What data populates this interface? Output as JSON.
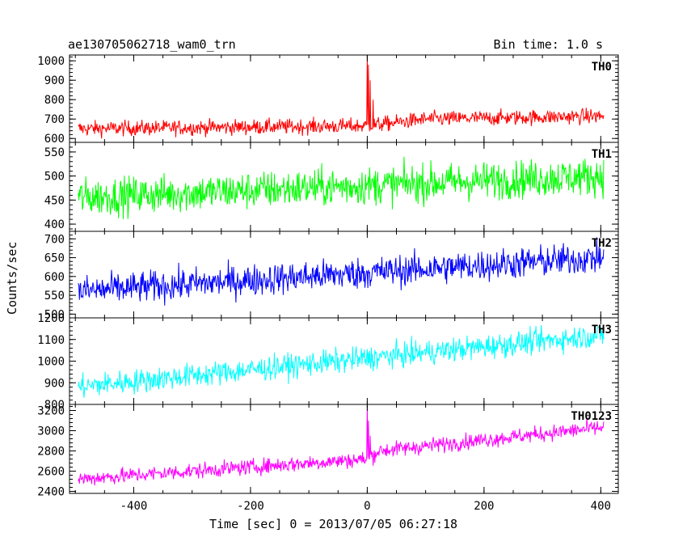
{
  "header": {
    "title": "ae130705062718_wam0_trn",
    "bin_time": "Bin time: 1.0 s"
  },
  "chart_data": {
    "type": "line",
    "xlabel": "Time [sec] 0 = 2013/07/05 06:27:18",
    "ylabel": "Counts/sec",
    "xlim": [
      -510,
      430
    ],
    "xticks": [
      -400,
      -200,
      0,
      200,
      400
    ],
    "panels": [
      {
        "name": "TH0",
        "color": "#ff0000",
        "ylim": [
          580,
          1030
        ],
        "yticks": [
          600,
          700,
          800,
          900,
          1000
        ],
        "trend": [
          {
            "x": -500,
            "y": 650
          },
          {
            "x": 0,
            "y": 665
          },
          {
            "x": 100,
            "y": 700
          },
          {
            "x": 400,
            "y": 715
          }
        ],
        "noise": 28,
        "spikes": [
          {
            "x": 0,
            "y": 1020
          },
          {
            "x": 2,
            "y": 980
          },
          {
            "x": 5,
            "y": 900
          },
          {
            "x": 10,
            "y": 800
          }
        ]
      },
      {
        "name": "TH1",
        "color": "#00ff00",
        "ylim": [
          385,
          570
        ],
        "yticks": [
          400,
          450,
          500,
          550
        ],
        "trend": [
          {
            "x": -500,
            "y": 455
          },
          {
            "x": 400,
            "y": 500
          }
        ],
        "noise": 28,
        "spikes": []
      },
      {
        "name": "TH2",
        "color": "#0000ff",
        "ylim": [
          490,
          720
        ],
        "yticks": [
          500,
          550,
          600,
          650,
          700
        ],
        "trend": [
          {
            "x": -500,
            "y": 560
          },
          {
            "x": 400,
            "y": 650
          }
        ],
        "noise": 30,
        "spikes": []
      },
      {
        "name": "TH3",
        "color": "#00ffff",
        "ylim": [
          800,
          1200
        ],
        "yticks": [
          800,
          900,
          1000,
          1100,
          1200
        ],
        "trend": [
          {
            "x": -500,
            "y": 880
          },
          {
            "x": 400,
            "y": 1120
          }
        ],
        "noise": 40,
        "spikes": []
      },
      {
        "name": "TH0123",
        "color": "#ff00ff",
        "ylim": [
          2380,
          3260
        ],
        "yticks": [
          2400,
          2600,
          2800,
          3000,
          3200
        ],
        "trend": [
          {
            "x": -500,
            "y": 2520
          },
          {
            "x": 0,
            "y": 2720
          },
          {
            "x": 20,
            "y": 2800
          },
          {
            "x": 400,
            "y": 3030
          }
        ],
        "noise": 55,
        "spikes": [
          {
            "x": 0,
            "y": 3250
          },
          {
            "x": 2,
            "y": 3100
          },
          {
            "x": 5,
            "y": 2950
          }
        ]
      }
    ]
  }
}
